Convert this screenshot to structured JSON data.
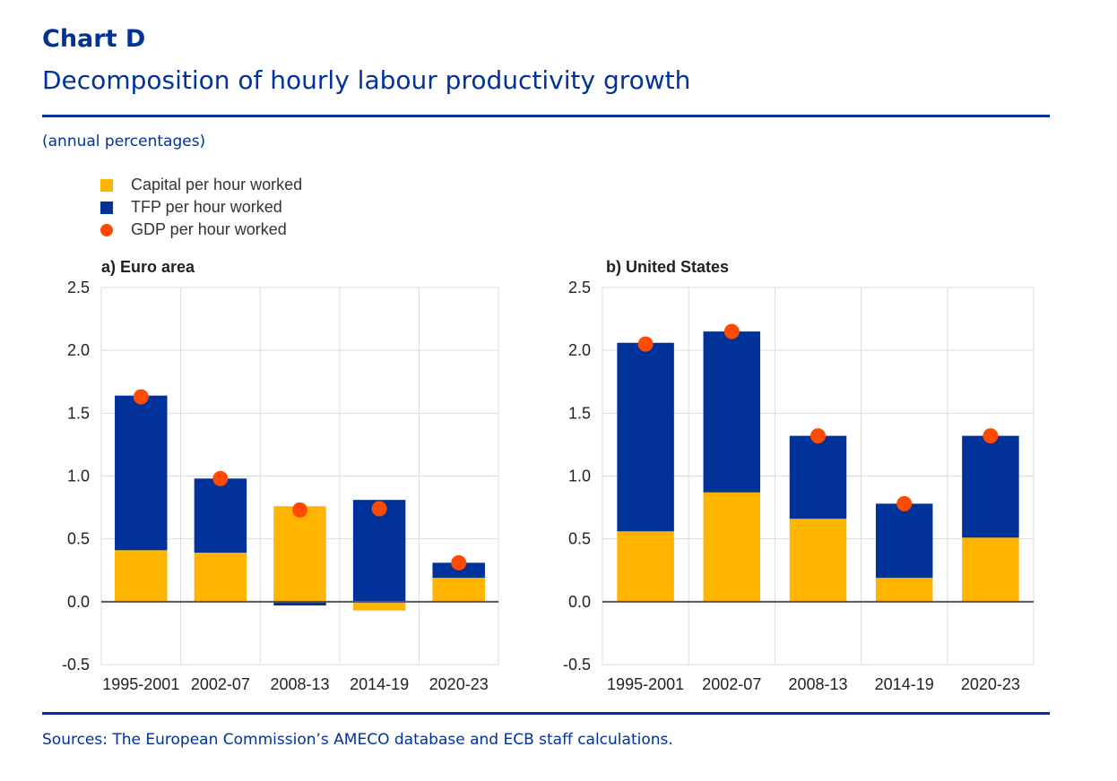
{
  "header": {
    "chart_label": "Chart D",
    "title": "Decomposition of hourly labour productivity growth",
    "units": "(annual percentages)"
  },
  "footer": {
    "sources": "Sources: The European Commission’s AMECO database and ECB staff calculations."
  },
  "colors": {
    "capital": "#FFB400",
    "tfp": "#003299",
    "gdp": "#FF4B00",
    "text": "#003299"
  },
  "legend": [
    {
      "label": "Capital per hour worked"
    },
    {
      "label": "TFP per hour worked"
    },
    {
      "label": "GDP per hour worked"
    }
  ],
  "chart_data": [
    {
      "type": "bar",
      "stacked": true,
      "title": "a) Euro area",
      "categories": [
        "1995-2001",
        "2002-07",
        "2008-13",
        "2014-19",
        "2020-23"
      ],
      "ylim": [
        -0.5,
        2.5
      ],
      "yticks": [
        "2.5",
        "2.0",
        "1.5",
        "1.0",
        "0.5",
        "0.0",
        "-0.5"
      ],
      "grid": true,
      "series": [
        {
          "name": "Capital per hour worked",
          "values": [
            0.41,
            0.39,
            0.76,
            -0.07,
            0.19
          ]
        },
        {
          "name": "TFP per hour worked",
          "values": [
            1.23,
            0.59,
            -0.03,
            0.81,
            0.12
          ]
        },
        {
          "name": "GDP per hour worked",
          "type": "scatter",
          "values": [
            1.63,
            0.98,
            0.73,
            0.74,
            0.31
          ]
        }
      ]
    },
    {
      "type": "bar",
      "stacked": true,
      "title": "b) United States",
      "categories": [
        "1995-2001",
        "2002-07",
        "2008-13",
        "2014-19",
        "2020-23"
      ],
      "ylim": [
        -0.5,
        2.5
      ],
      "yticks": [
        "2.5",
        "2.0",
        "1.5",
        "1.0",
        "0.5",
        "0.0",
        "-0.5"
      ],
      "grid": true,
      "series": [
        {
          "name": "Capital per hour worked",
          "values": [
            0.56,
            0.87,
            0.66,
            0.19,
            0.51
          ]
        },
        {
          "name": "TFP per hour worked",
          "values": [
            1.5,
            1.28,
            0.66,
            0.59,
            0.81
          ]
        },
        {
          "name": "GDP per hour worked",
          "type": "scatter",
          "values": [
            2.05,
            2.15,
            1.32,
            0.78,
            1.32
          ]
        }
      ]
    }
  ]
}
